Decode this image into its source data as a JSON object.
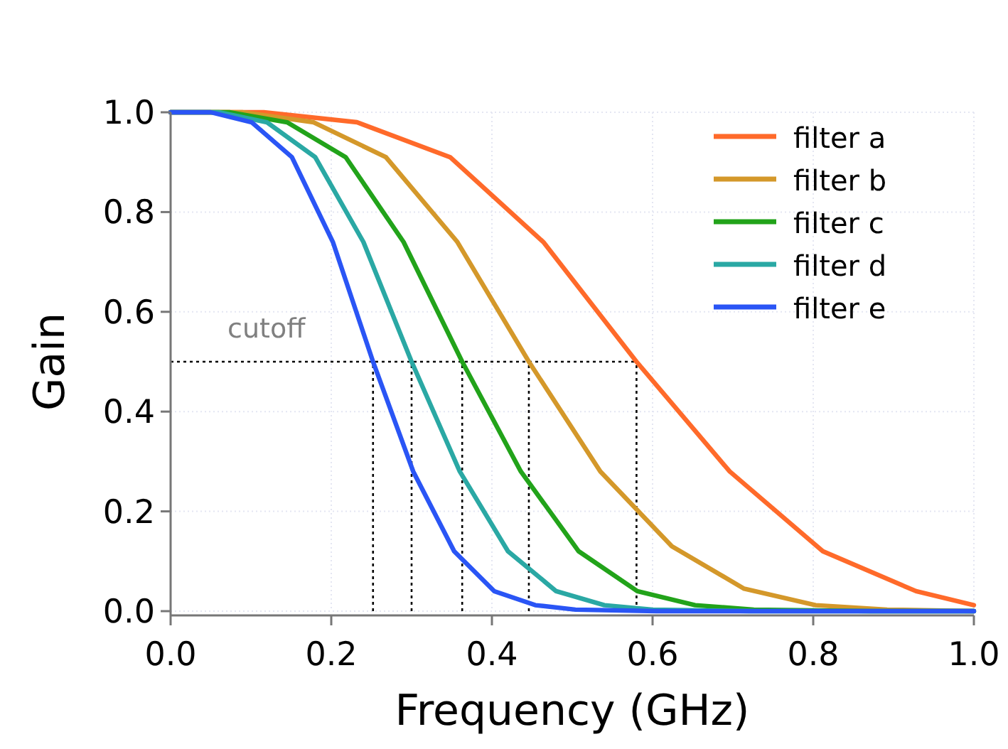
{
  "chart_data": {
    "type": "line",
    "xlabel": "Frequency (GHz)",
    "ylabel": "Gain",
    "xlim": [
      0,
      1
    ],
    "ylim": [
      0,
      1
    ],
    "xticks": [
      {
        "value": 0,
        "label": "0.0"
      },
      {
        "value": 0.2,
        "label": "0.2"
      },
      {
        "value": 0.4,
        "label": "0.4"
      },
      {
        "value": 0.6,
        "label": "0.6"
      },
      {
        "value": 0.8,
        "label": "0.8"
      },
      {
        "value": 1,
        "label": "1.0"
      }
    ],
    "yticks": [
      {
        "value": 0,
        "label": "0.0"
      },
      {
        "value": 0.2,
        "label": "0.2"
      },
      {
        "value": 0.4,
        "label": "0.4"
      },
      {
        "value": 0.6,
        "label": "0.6"
      },
      {
        "value": 0.8,
        "label": "0.8"
      },
      {
        "value": 1,
        "label": "1.0"
      }
    ],
    "grid": true,
    "legend": "top right",
    "line_style": "solid",
    "marker": "none",
    "ref_lines": [
      {
        "axis": "y",
        "value": 0.5,
        "label": "cutoff",
        "line_style": "dotted",
        "color": "#000000"
      },
      {
        "axis": "x",
        "value": 0.252,
        "label": null,
        "line_style": "dotted",
        "color": "#000000"
      },
      {
        "axis": "x",
        "value": 0.3,
        "label": null,
        "line_style": "dotted",
        "color": "#000000"
      },
      {
        "axis": "x",
        "value": 0.363,
        "label": null,
        "line_style": "dotted",
        "color": "#000000"
      },
      {
        "axis": "x",
        "value": 0.446,
        "label": null,
        "line_style": "dotted",
        "color": "#000000"
      },
      {
        "axis": "x",
        "value": 0.58,
        "label": null,
        "line_style": "dotted",
        "color": "#000000"
      }
    ],
    "series": [
      {
        "name": "filter a",
        "color": "#ff6a2a",
        "x": [
          0,
          0.116,
          0.232,
          0.348,
          0.464,
          0.58,
          0.696,
          0.812,
          0.928,
          1.0
        ],
        "values": [
          1,
          1,
          0.98,
          0.91,
          0.74,
          0.5,
          0.28,
          0.12,
          0.04,
          0.012
        ]
      },
      {
        "name": "filter b",
        "color": "#d4982a",
        "x": [
          0,
          0.089,
          0.178,
          0.268,
          0.357,
          0.446,
          0.535,
          0.624,
          0.714,
          0.803,
          0.892,
          1.0
        ],
        "values": [
          1,
          1,
          0.98,
          0.91,
          0.74,
          0.5,
          0.28,
          0.13,
          0.045,
          0.012,
          0.003,
          0
        ]
      },
      {
        "name": "filter c",
        "color": "#22a31a",
        "x": [
          0,
          0.073,
          0.145,
          0.218,
          0.29,
          0.363,
          0.436,
          0.508,
          0.581,
          0.653,
          0.726,
          0.871,
          1.0
        ],
        "values": [
          1,
          1,
          0.98,
          0.91,
          0.74,
          0.5,
          0.28,
          0.12,
          0.04,
          0.012,
          0.003,
          0,
          0
        ]
      },
      {
        "name": "filter d",
        "color": "#2aa8a4",
        "x": [
          0,
          0.06,
          0.12,
          0.18,
          0.24,
          0.3,
          0.36,
          0.42,
          0.48,
          0.54,
          0.6,
          0.72,
          1.0
        ],
        "values": [
          1,
          1,
          0.98,
          0.91,
          0.74,
          0.5,
          0.28,
          0.12,
          0.04,
          0.012,
          0.003,
          0,
          0
        ]
      },
      {
        "name": "filter e",
        "color": "#2a55f5",
        "x": [
          0,
          0.05,
          0.101,
          0.151,
          0.202,
          0.252,
          0.302,
          0.353,
          0.403,
          0.454,
          0.504,
          0.605,
          1.0
        ],
        "values": [
          1,
          1,
          0.98,
          0.91,
          0.74,
          0.5,
          0.28,
          0.12,
          0.04,
          0.012,
          0.003,
          0,
          0
        ]
      }
    ]
  }
}
